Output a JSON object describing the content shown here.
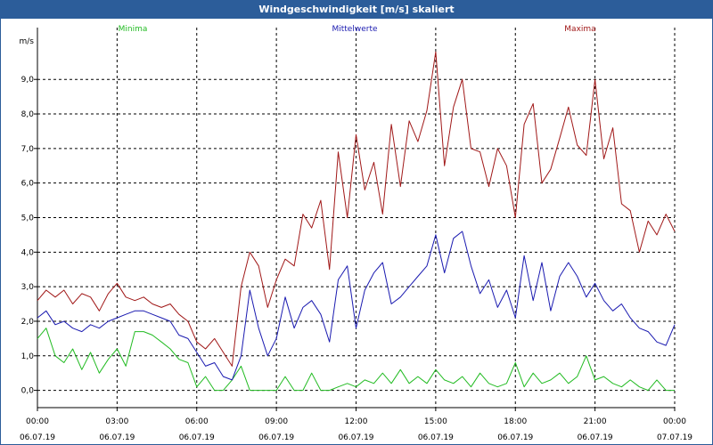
{
  "window": {
    "title": "Windgeschwindigkeit [m/s] skaliert"
  },
  "colors": {
    "background": "#ffffff",
    "titlebar": "#2c5d9a",
    "minima": "#22bb22",
    "mittelwerte": "#1a1ab0",
    "maxima": "#a01818",
    "grid": "#000000",
    "axis": "#000000"
  },
  "chart_data": {
    "type": "line",
    "title": "Windgeschwindigkeit [m/s] skaliert",
    "ylabel": "m/s",
    "ylim": [
      -0.5,
      10.5
    ],
    "yticks": [
      0.0,
      1.0,
      2.0,
      3.0,
      4.0,
      5.0,
      6.0,
      7.0,
      8.0,
      9.0
    ],
    "ytick_labels": [
      "0,0",
      "1,0",
      "2,0",
      "3,0",
      "4,0",
      "5,0",
      "6,0",
      "7,0",
      "8,0",
      "9,0"
    ],
    "xlim": [
      0,
      24
    ],
    "xticks": [
      {
        "t": 0,
        "time": "00:00",
        "date": "06.07.19"
      },
      {
        "t": 3,
        "time": "03:00",
        "date": "06.07.19"
      },
      {
        "t": 6,
        "time": "06:00",
        "date": "06.07.19"
      },
      {
        "t": 9,
        "time": "09:00",
        "date": "06.07.19"
      },
      {
        "t": 12,
        "time": "12:00",
        "date": "06.07.19"
      },
      {
        "t": 15,
        "time": "15:00",
        "date": "06.07.19"
      },
      {
        "t": 18,
        "time": "18:00",
        "date": "06.07.19"
      },
      {
        "t": 21,
        "time": "21:00",
        "date": "06.07.19"
      },
      {
        "t": 24,
        "time": "00:00",
        "date": "07.07.19"
      }
    ],
    "grid": true,
    "legend_position": "top",
    "series": [
      {
        "name": "Minima",
        "color": "#22bb22",
        "x": [
          0,
          0.33,
          0.67,
          1,
          1.33,
          1.67,
          2,
          2.33,
          2.67,
          3,
          3.33,
          3.67,
          4,
          4.33,
          4.67,
          5,
          5.33,
          5.67,
          6,
          6.33,
          6.67,
          7,
          7.33,
          7.67,
          8,
          8.33,
          8.67,
          9,
          9.33,
          9.67,
          10,
          10.33,
          10.67,
          11,
          11.33,
          11.67,
          12,
          12.33,
          12.67,
          13,
          13.33,
          13.67,
          14,
          14.33,
          14.67,
          15,
          15.33,
          15.67,
          16,
          16.33,
          16.67,
          17,
          17.33,
          17.67,
          18,
          18.33,
          18.67,
          19,
          19.33,
          19.67,
          20,
          20.33,
          20.67,
          21,
          21.33,
          21.67,
          22,
          22.33,
          22.67,
          23,
          23.33,
          23.67,
          24
        ],
        "values": [
          1.5,
          1.8,
          1.0,
          0.8,
          1.2,
          0.6,
          1.1,
          0.5,
          0.9,
          1.2,
          0.7,
          1.7,
          1.7,
          1.6,
          1.4,
          1.2,
          0.9,
          0.8,
          0.1,
          0.4,
          0.0,
          0.0,
          0.3,
          0.7,
          0.0,
          0.0,
          0.0,
          0.0,
          0.4,
          0.0,
          0.0,
          0.5,
          0.0,
          0.0,
          0.1,
          0.2,
          0.1,
          0.3,
          0.2,
          0.5,
          0.2,
          0.6,
          0.2,
          0.4,
          0.2,
          0.6,
          0.3,
          0.2,
          0.4,
          0.1,
          0.5,
          0.2,
          0.1,
          0.2,
          0.8,
          0.1,
          0.5,
          0.2,
          0.3,
          0.5,
          0.2,
          0.4,
          1.0,
          0.3,
          0.4,
          0.2,
          0.1,
          0.3,
          0.1,
          0.0,
          0.3,
          0.0,
          0.0
        ]
      },
      {
        "name": "Mittelwerte",
        "color": "#1a1ab0",
        "x": [
          0,
          0.33,
          0.67,
          1,
          1.33,
          1.67,
          2,
          2.33,
          2.67,
          3,
          3.33,
          3.67,
          4,
          4.33,
          4.67,
          5,
          5.33,
          5.67,
          6,
          6.33,
          6.67,
          7,
          7.33,
          7.67,
          8,
          8.33,
          8.67,
          9,
          9.33,
          9.67,
          10,
          10.33,
          10.67,
          11,
          11.33,
          11.67,
          12,
          12.33,
          12.67,
          13,
          13.33,
          13.67,
          14,
          14.33,
          14.67,
          15,
          15.33,
          15.67,
          16,
          16.33,
          16.67,
          17,
          17.33,
          17.67,
          18,
          18.33,
          18.67,
          19,
          19.33,
          19.67,
          20,
          20.33,
          20.67,
          21,
          21.33,
          21.67,
          22,
          22.33,
          22.67,
          23,
          23.33,
          23.67,
          24
        ],
        "values": [
          2.1,
          2.3,
          1.9,
          2.0,
          1.8,
          1.7,
          1.9,
          1.8,
          2.0,
          2.1,
          2.2,
          2.3,
          2.3,
          2.2,
          2.1,
          2.0,
          1.6,
          1.5,
          1.1,
          0.7,
          0.8,
          0.4,
          0.3,
          1.0,
          2.9,
          1.8,
          1.0,
          1.5,
          2.7,
          1.8,
          2.4,
          2.6,
          2.2,
          1.4,
          3.2,
          3.6,
          1.8,
          2.9,
          3.4,
          3.7,
          2.5,
          2.7,
          3.0,
          3.3,
          3.6,
          4.5,
          3.4,
          4.4,
          4.6,
          3.6,
          2.8,
          3.2,
          2.4,
          2.9,
          2.1,
          3.9,
          2.6,
          3.7,
          2.3,
          3.3,
          3.7,
          3.3,
          2.7,
          3.1,
          2.6,
          2.3,
          2.5,
          2.1,
          1.8,
          1.7,
          1.4,
          1.3,
          1.9
        ]
      },
      {
        "name": "Maxima",
        "color": "#a01818",
        "x": [
          0,
          0.33,
          0.67,
          1,
          1.33,
          1.67,
          2,
          2.33,
          2.67,
          3,
          3.33,
          3.67,
          4,
          4.33,
          4.67,
          5,
          5.33,
          5.67,
          6,
          6.33,
          6.67,
          7,
          7.33,
          7.67,
          8,
          8.33,
          8.67,
          9,
          9.33,
          9.67,
          10,
          10.33,
          10.67,
          11,
          11.33,
          11.67,
          12,
          12.33,
          12.67,
          13,
          13.33,
          13.67,
          14,
          14.33,
          14.67,
          15,
          15.33,
          15.67,
          16,
          16.33,
          16.67,
          17,
          17.33,
          17.67,
          18,
          18.33,
          18.67,
          19,
          19.33,
          19.67,
          20,
          20.33,
          20.67,
          21,
          21.33,
          21.67,
          22,
          22.33,
          22.67,
          23,
          23.33,
          23.67,
          24
        ],
        "values": [
          2.6,
          2.9,
          2.7,
          2.9,
          2.5,
          2.8,
          2.7,
          2.3,
          2.8,
          3.1,
          2.7,
          2.6,
          2.7,
          2.5,
          2.4,
          2.5,
          2.2,
          2.0,
          1.4,
          1.2,
          1.5,
          1.1,
          0.7,
          3.0,
          4.0,
          3.6,
          2.4,
          3.2,
          3.8,
          3.6,
          5.1,
          4.7,
          5.5,
          3.5,
          6.9,
          5.0,
          7.4,
          5.8,
          6.6,
          5.1,
          7.7,
          5.9,
          7.8,
          7.2,
          8.1,
          9.8,
          6.5,
          8.2,
          9.0,
          7.0,
          6.9,
          5.9,
          7.0,
          6.5,
          5.0,
          7.7,
          8.3,
          6.0,
          6.4,
          7.3,
          8.2,
          7.1,
          6.8,
          9.0,
          6.7,
          7.6,
          5.4,
          5.2,
          4.0,
          4.9,
          4.5,
          5.1,
          4.6
        ]
      }
    ]
  }
}
